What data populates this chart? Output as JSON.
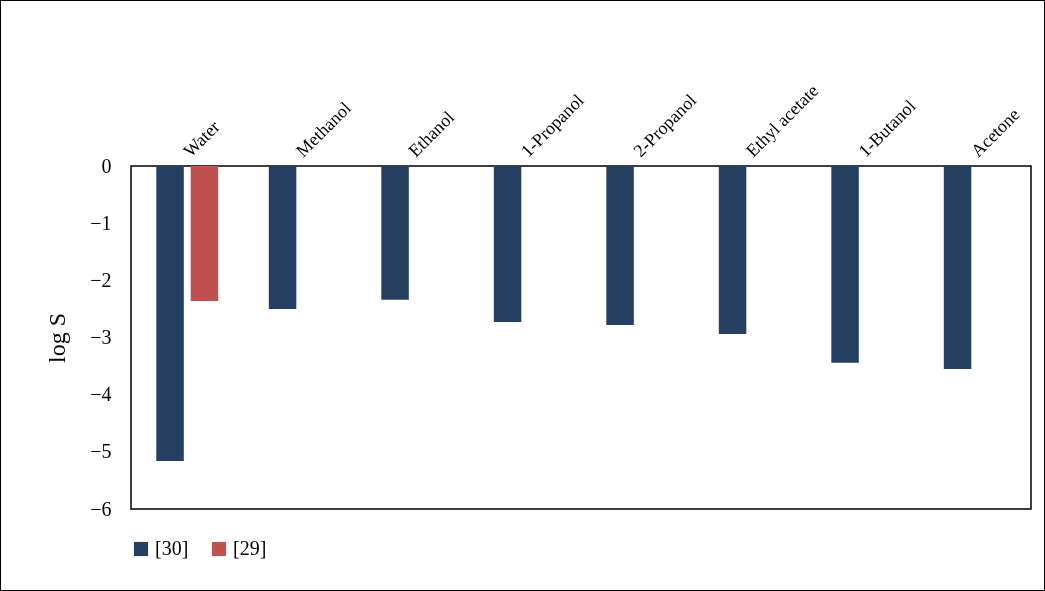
{
  "chart_data": {
    "type": "bar",
    "ylabel": "log S",
    "categories": [
      "Water",
      "Methanol",
      "Ethanol",
      "1-Propanol",
      "2-Propanol",
      "Ethyl acetate",
      "1-Butanol",
      "Acetone"
    ],
    "series": [
      {
        "name": "[30]",
        "color": "#243f60",
        "values": [
          -5.16,
          -2.5,
          -2.34,
          -2.73,
          -2.78,
          -2.94,
          -3.44,
          -3.55
        ]
      },
      {
        "name": "[29]",
        "color": "#c0504d",
        "values": [
          -2.36,
          null,
          null,
          null,
          null,
          null,
          null,
          null
        ]
      }
    ],
    "ylim": [
      -6,
      0
    ],
    "yticks": [
      -6,
      -5,
      -4,
      -3,
      -2,
      -1,
      0
    ],
    "grid": false,
    "legend": "bottom"
  }
}
